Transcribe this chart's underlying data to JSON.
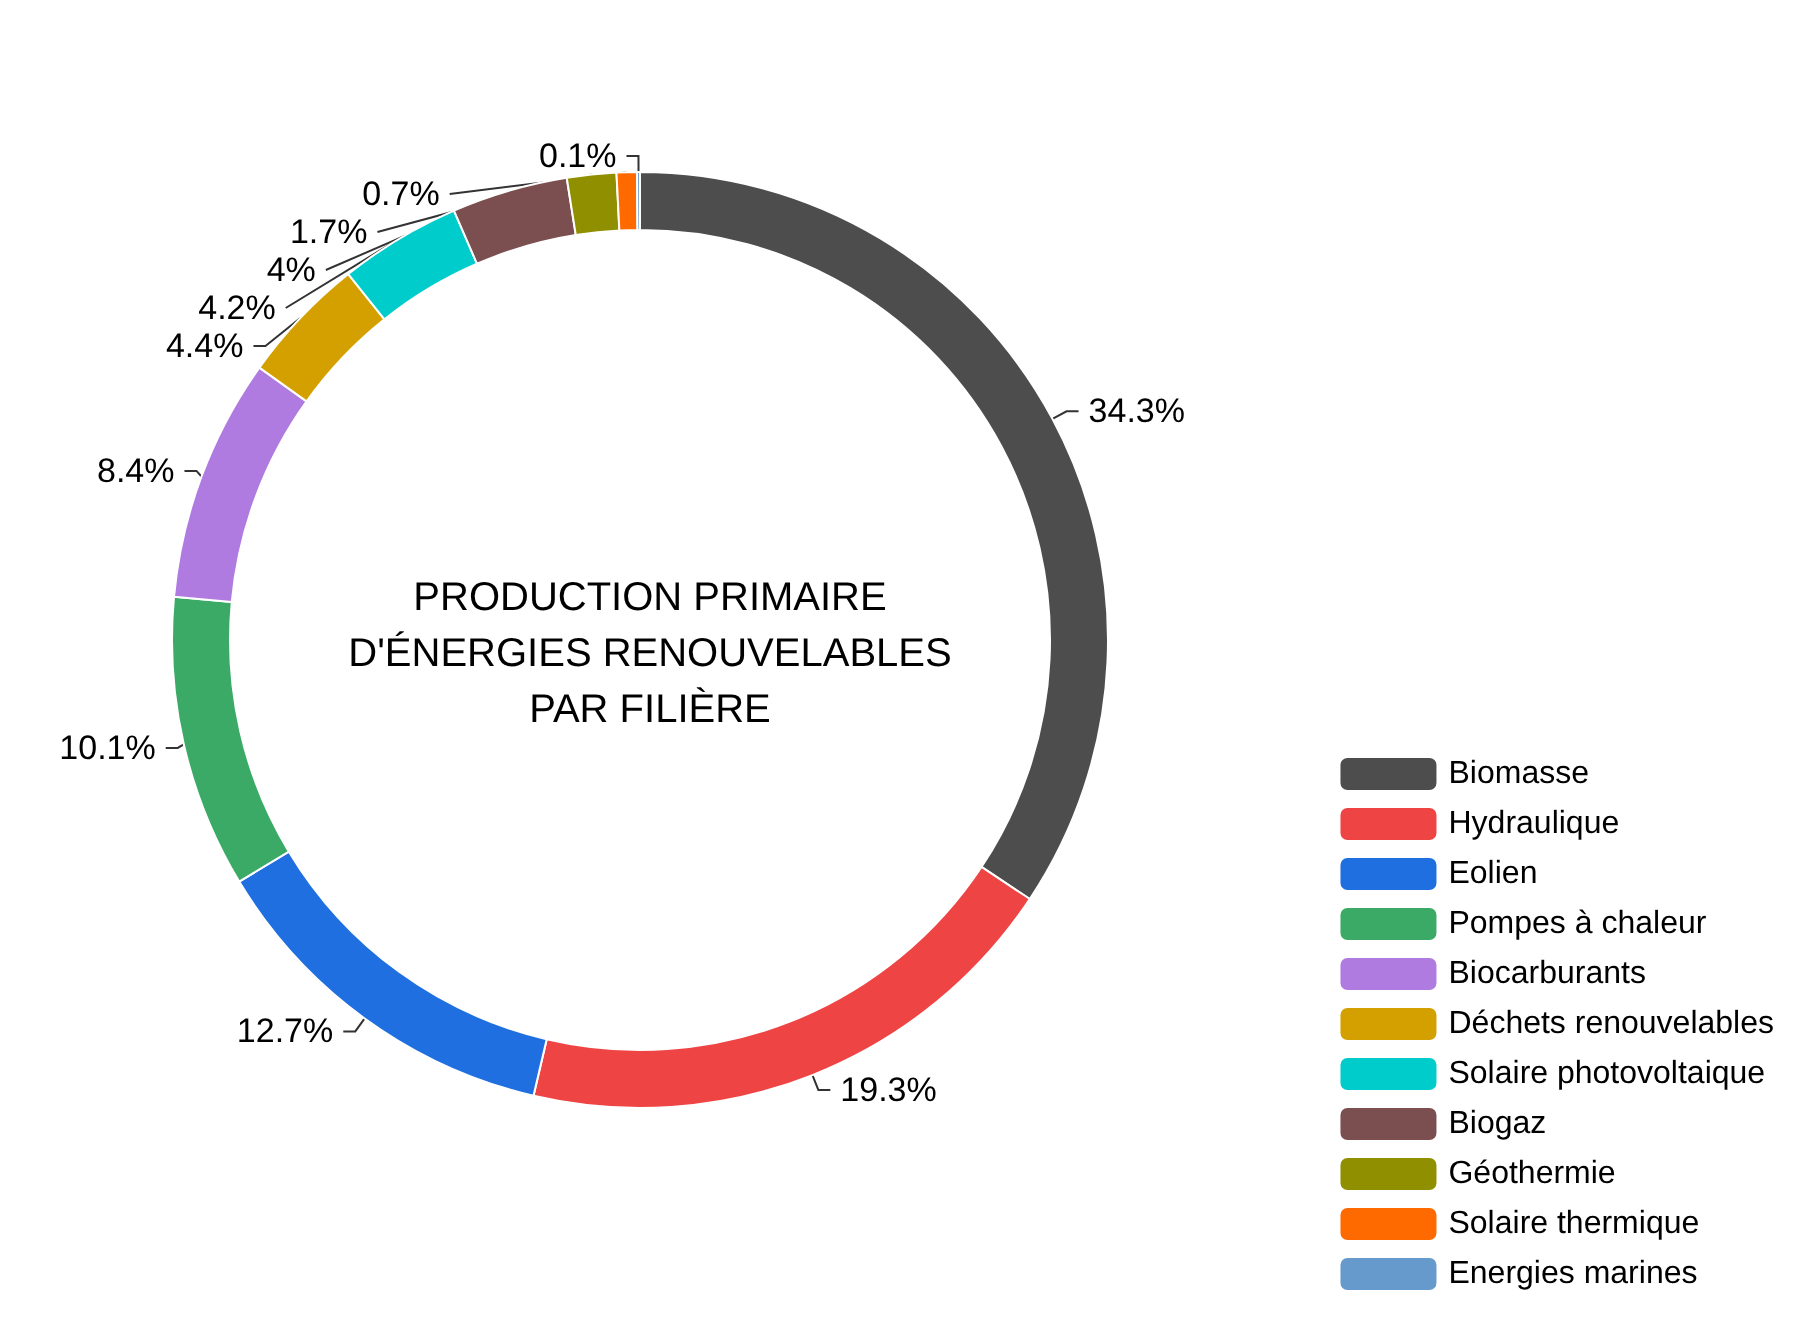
{
  "chart_data": {
    "type": "donut",
    "title": "PRODUCTION PRIMAIRE\nD'ÉNERGIES RENOUVELABLES\nPAR FILIÈRE",
    "categories": [
      "Biomasse",
      "Hydraulique",
      "Eolien",
      "Pompes à chaleur",
      "Biocarburants",
      "Déchets renouvelables",
      "Solaire photovoltaique",
      "Biogaz",
      "Géothermie",
      "Solaire thermique",
      "Energies marines"
    ],
    "values": [
      34.3,
      19.3,
      12.7,
      10.1,
      8.4,
      4.4,
      4.2,
      4,
      1.7,
      0.7,
      0.1
    ],
    "value_labels": [
      "34.3%",
      "19.3%",
      "12.7%",
      "10.1%",
      "8.4%",
      "4.4%",
      "4.2%",
      "4%",
      "1.7%",
      "0.7%",
      "0.1%"
    ],
    "colors": [
      "#4d4d4d",
      "#ef4444",
      "#1f6fe0",
      "#3aaa66",
      "#b07be0",
      "#d4a000",
      "#00cccc",
      "#7b4f4f",
      "#8f8f00",
      "#ff6a00",
      "#6699cc"
    ],
    "legend": "bottom right"
  }
}
